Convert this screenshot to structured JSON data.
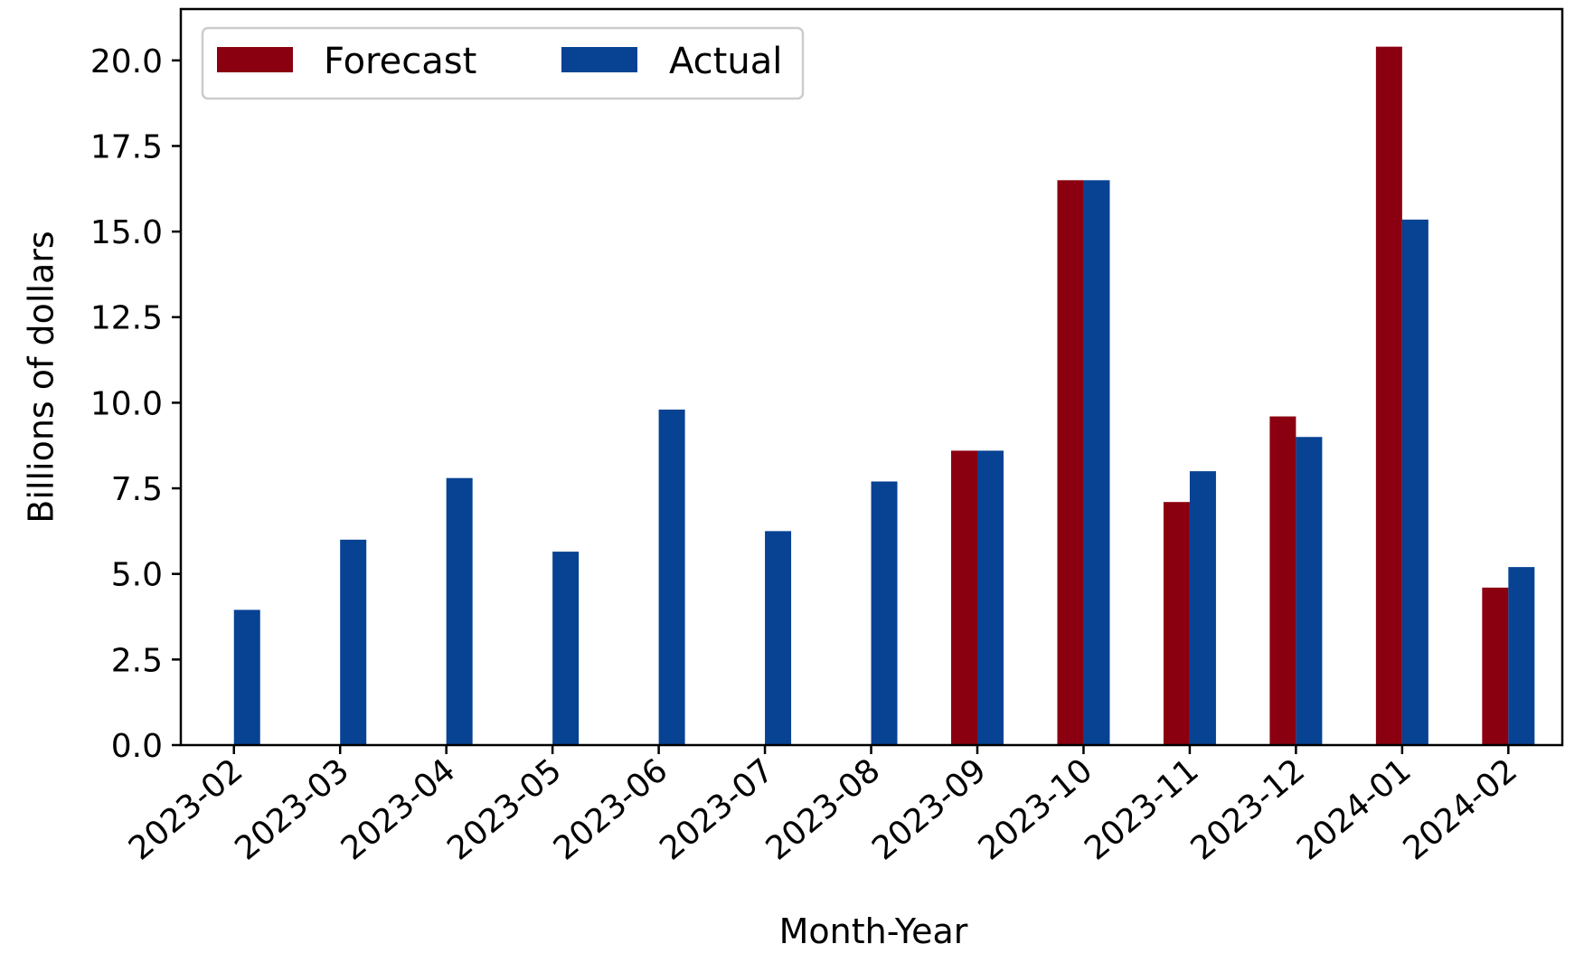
{
  "chart_data": {
    "type": "bar",
    "title": "",
    "xlabel": "Month-Year",
    "ylabel": "Billions of dollars",
    "ylim": [
      0,
      21.5
    ],
    "yticks": [
      "0.0",
      "2.5",
      "5.0",
      "7.5",
      "10.0",
      "12.5",
      "15.0",
      "17.5",
      "20.0"
    ],
    "categories": [
      "2023-02",
      "2023-03",
      "2023-04",
      "2023-05",
      "2023-06",
      "2023-07",
      "2023-08",
      "2023-09",
      "2023-10",
      "2023-11",
      "2023-12",
      "2024-01",
      "2024-02"
    ],
    "series": [
      {
        "name": "Forecast",
        "color": "#8b0010",
        "values": [
          null,
          null,
          null,
          null,
          null,
          null,
          null,
          8.6,
          16.5,
          7.1,
          9.6,
          20.4,
          4.6
        ]
      },
      {
        "name": "Actual",
        "color": "#074293",
        "values": [
          3.95,
          6.0,
          7.8,
          5.65,
          9.8,
          6.25,
          7.7,
          8.6,
          16.5,
          8.0,
          9.0,
          15.35,
          5.2
        ]
      }
    ],
    "legend": "top-left",
    "grid": false
  }
}
